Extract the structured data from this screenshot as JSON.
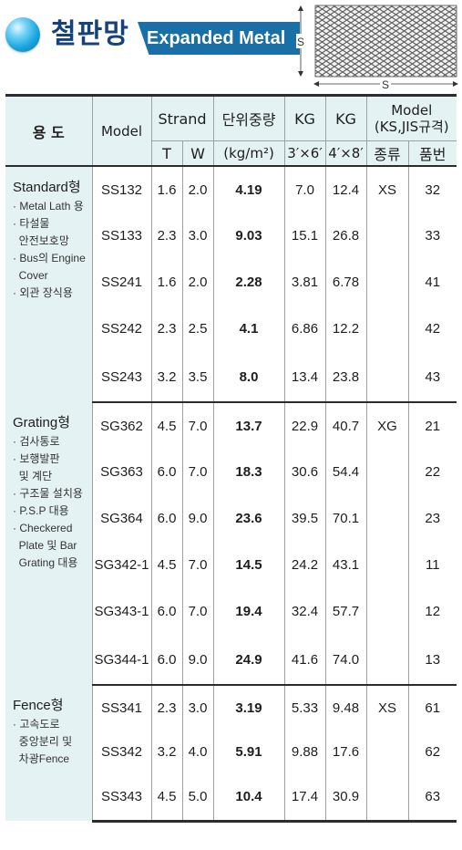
{
  "header": {
    "title_ko": "철판망",
    "title_en": "Expanded Metal",
    "diagram_label_side": "S",
    "diagram_label_bottom": "S"
  },
  "columns": {
    "use": "용 도",
    "model": "Model",
    "strand": "Strand",
    "strand_t": "T",
    "strand_w": "W",
    "unit_weight": "단위중량",
    "unit_weight_unit": "(kg/m²)",
    "kg1": "KG",
    "kg1_size": "3′×6′",
    "kg2": "KG",
    "kg2_size": "4′×8′",
    "std_model": "Model",
    "std_model_sub": "(KS,JIS규격)",
    "kind": "종류",
    "number": "품번"
  },
  "groups": [
    {
      "title": "Standard형",
      "uses": [
        "· Metal Lath 용",
        "· 타설물",
        "  안전보호망",
        "· Bus의 Engine",
        "  Cover",
        "· 외관 장식용"
      ],
      "kind": "XS",
      "rows": [
        {
          "model": "SS132",
          "t": "1.6",
          "w": "2.0",
          "weight": "4.19",
          "kg36": "7.0",
          "kg48": "12.4",
          "no": "32"
        },
        {
          "model": "SS133",
          "t": "2.3",
          "w": "3.0",
          "weight": "9.03",
          "kg36": "15.1",
          "kg48": "26.8",
          "no": "33"
        },
        {
          "model": "SS241",
          "t": "1.6",
          "w": "2.0",
          "weight": "2.28",
          "kg36": "3.81",
          "kg48": "6.78",
          "no": "41"
        },
        {
          "model": "SS242",
          "t": "2.3",
          "w": "2.5",
          "weight": "4.1",
          "kg36": "6.86",
          "kg48": "12.2",
          "no": "42"
        },
        {
          "model": "SS243",
          "t": "3.2",
          "w": "3.5",
          "weight": "8.0",
          "kg36": "13.4",
          "kg48": "23.8",
          "no": "43"
        }
      ]
    },
    {
      "title": "Grating형",
      "uses": [
        "· 검사통로",
        "· 보행발판",
        "  및 계단",
        "· 구조물 설치용",
        "· P.S.P 대용",
        "· Checkered",
        "  Plate 및 Bar",
        "  Grating 대용"
      ],
      "kind": "XG",
      "rows": [
        {
          "model": "SG362",
          "t": "4.5",
          "w": "7.0",
          "weight": "13.7",
          "kg36": "22.9",
          "kg48": "40.7",
          "no": "21"
        },
        {
          "model": "SG363",
          "t": "6.0",
          "w": "7.0",
          "weight": "18.3",
          "kg36": "30.6",
          "kg48": "54.4",
          "no": "22"
        },
        {
          "model": "SG364",
          "t": "6.0",
          "w": "9.0",
          "weight": "23.6",
          "kg36": "39.5",
          "kg48": "70.1",
          "no": "23"
        },
        {
          "model": "SG342-1",
          "t": "4.5",
          "w": "7.0",
          "weight": "14.5",
          "kg36": "24.2",
          "kg48": "43.1",
          "no": "11"
        },
        {
          "model": "SG343-1",
          "t": "6.0",
          "w": "7.0",
          "weight": "19.4",
          "kg36": "32.4",
          "kg48": "57.7",
          "no": "12"
        },
        {
          "model": "SG344-1",
          "t": "6.0",
          "w": "9.0",
          "weight": "24.9",
          "kg36": "41.6",
          "kg48": "74.0",
          "no": "13"
        }
      ]
    },
    {
      "title": "Fence형",
      "uses": [
        "· 고속도로",
        "  중앙분리 및",
        "  차광Fence"
      ],
      "kind": "XS",
      "rows": [
        {
          "model": "SS341",
          "t": "2.3",
          "w": "3.0",
          "weight": "3.19",
          "kg36": "5.33",
          "kg48": "9.48",
          "no": "61"
        },
        {
          "model": "SS342",
          "t": "3.2",
          "w": "4.0",
          "weight": "5.91",
          "kg36": "9.88",
          "kg48": "17.6",
          "no": "62"
        },
        {
          "model": "SS343",
          "t": "4.5",
          "w": "5.0",
          "weight": "10.4",
          "kg36": "17.4",
          "kg48": "30.9",
          "no": "63"
        }
      ]
    }
  ]
}
